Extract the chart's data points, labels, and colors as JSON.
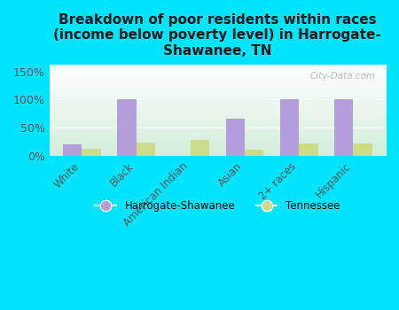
{
  "title": "Breakdown of poor residents within races\n(income below poverty level) in Harrogate-\nShawanee, TN",
  "categories": [
    "White",
    "Black",
    "American Indian",
    "Asian",
    "2+ races",
    "Hispanic"
  ],
  "harrogate_values": [
    20,
    100,
    0,
    67,
    100,
    100
  ],
  "tennessee_values": [
    13,
    24,
    28,
    11,
    23,
    23
  ],
  "harrogate_color": "#b39ddb",
  "tennessee_color": "#cddc8a",
  "ylim": [
    0,
    162
  ],
  "yticks": [
    0,
    50,
    100,
    150
  ],
  "ytick_labels": [
    "0%",
    "50%",
    "100%",
    "150%"
  ],
  "background_color": "#00e5ff",
  "plot_bg_top": "#ffffff",
  "plot_bg_bottom": "#d4edda",
  "bar_width": 0.35,
  "title_fontsize": 11,
  "watermark": "City-Data.com",
  "legend_label1": "Harrogate-Shawanee",
  "legend_label2": "Tennessee"
}
